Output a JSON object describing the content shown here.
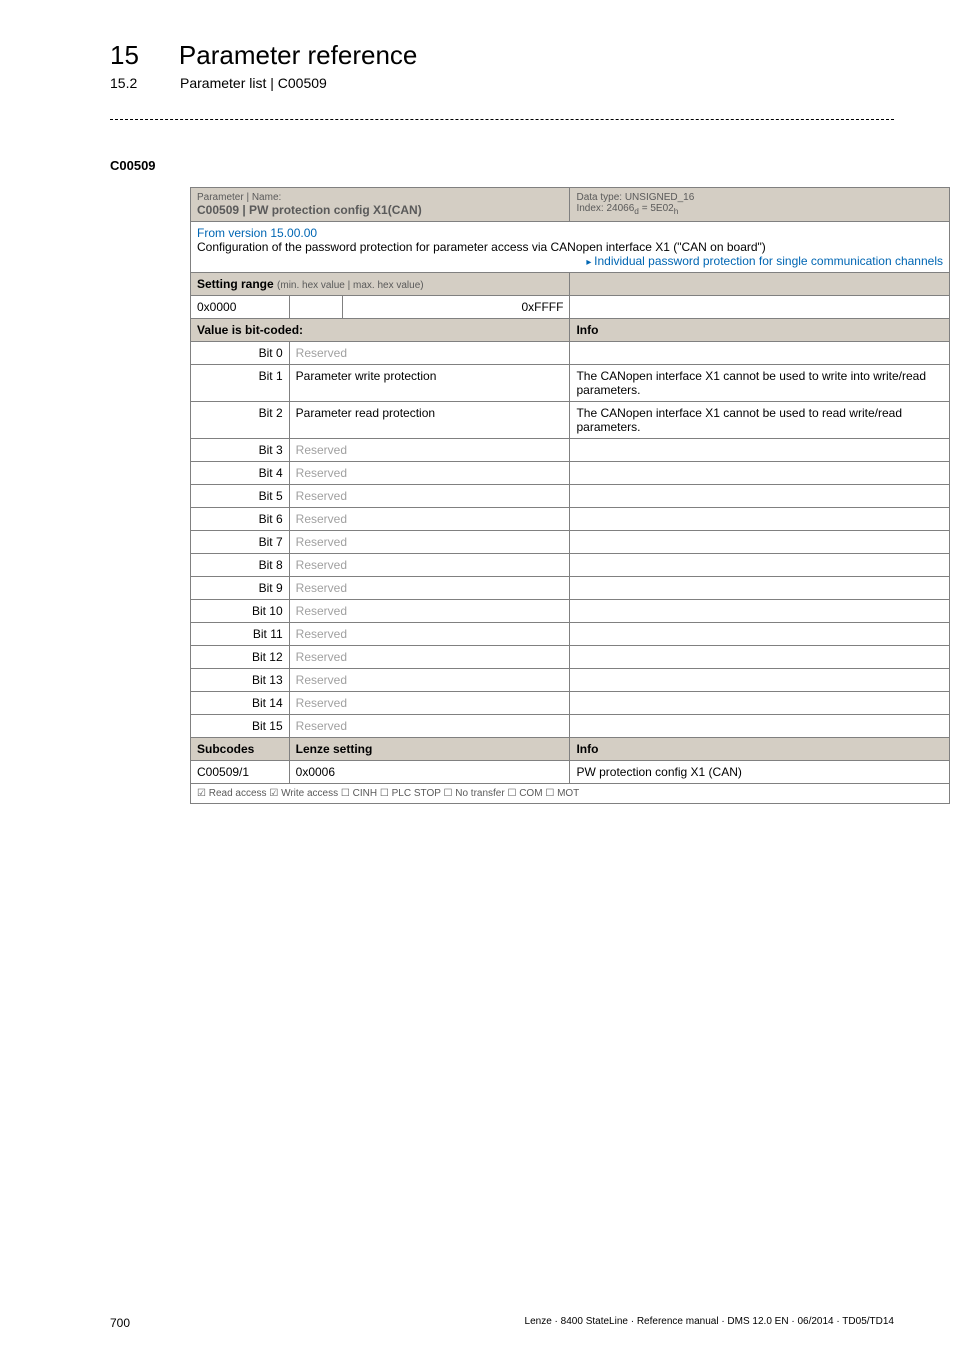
{
  "header": {
    "chapter_num": "15",
    "chapter_title": "Parameter reference",
    "section_num": "15.2",
    "section_title": "Parameter list | C00509"
  },
  "param_heading": "C00509",
  "hdr": {
    "param_label": "Parameter | Name:",
    "param_name": "C00509 | PW protection config X1(CAN)",
    "data_type": "Data type: UNSIGNED_16",
    "index": "Index: 24066",
    "index_sub_d": "d",
    "index_eq": " = 5E02",
    "index_sub_h": "h"
  },
  "desc": {
    "from_version": "From version 15.00.00",
    "text": "Configuration of the password protection for parameter access via CANopen interface X1 (\"CAN on board\")",
    "link": "Individual password protection for single communication channels"
  },
  "setting_range": {
    "label": "Setting range",
    "hint": "(min. hex value | max. hex value)",
    "min": "0x0000",
    "max": "0xFFFF"
  },
  "bitcoded_label": "Value is bit-coded:",
  "info_label": "Info",
  "bits": [
    {
      "bit": "Bit 0",
      "label": "Reserved",
      "reserved": true,
      "info": ""
    },
    {
      "bit": "Bit 1",
      "label": "Parameter write protection",
      "reserved": false,
      "info": "The CANopen interface X1 cannot be used to write into write/read parameters."
    },
    {
      "bit": "Bit 2",
      "label": "Parameter read protection",
      "reserved": false,
      "info": "The CANopen interface X1 cannot be used to read write/read parameters."
    },
    {
      "bit": "Bit 3",
      "label": "Reserved",
      "reserved": true,
      "info": ""
    },
    {
      "bit": "Bit 4",
      "label": "Reserved",
      "reserved": true,
      "info": ""
    },
    {
      "bit": "Bit 5",
      "label": "Reserved",
      "reserved": true,
      "info": ""
    },
    {
      "bit": "Bit 6",
      "label": "Reserved",
      "reserved": true,
      "info": ""
    },
    {
      "bit": "Bit 7",
      "label": "Reserved",
      "reserved": true,
      "info": ""
    },
    {
      "bit": "Bit 8",
      "label": "Reserved",
      "reserved": true,
      "info": ""
    },
    {
      "bit": "Bit 9",
      "label": "Reserved",
      "reserved": true,
      "info": ""
    },
    {
      "bit": "Bit 10",
      "label": "Reserved",
      "reserved": true,
      "info": ""
    },
    {
      "bit": "Bit 11",
      "label": "Reserved",
      "reserved": true,
      "info": ""
    },
    {
      "bit": "Bit 12",
      "label": "Reserved",
      "reserved": true,
      "info": ""
    },
    {
      "bit": "Bit 13",
      "label": "Reserved",
      "reserved": true,
      "info": ""
    },
    {
      "bit": "Bit 14",
      "label": "Reserved",
      "reserved": true,
      "info": ""
    },
    {
      "bit": "Bit 15",
      "label": "Reserved",
      "reserved": true,
      "info": ""
    }
  ],
  "subcodes": {
    "col1": "Subcodes",
    "col2": "Lenze setting",
    "col3": "Info",
    "row": {
      "c1": "C00509/1",
      "c2": "0x0006",
      "c3": "PW protection config X1 (CAN)"
    }
  },
  "access_line": "☑ Read access   ☑ Write access   ☐ CINH   ☐ PLC STOP   ☐ No transfer   ☐ COM   ☐ MOT",
  "footer": {
    "page": "700",
    "ref": "Lenze · 8400 StateLine · Reference manual · DMS 12.0 EN · 06/2014 · TD05/TD14"
  }
}
